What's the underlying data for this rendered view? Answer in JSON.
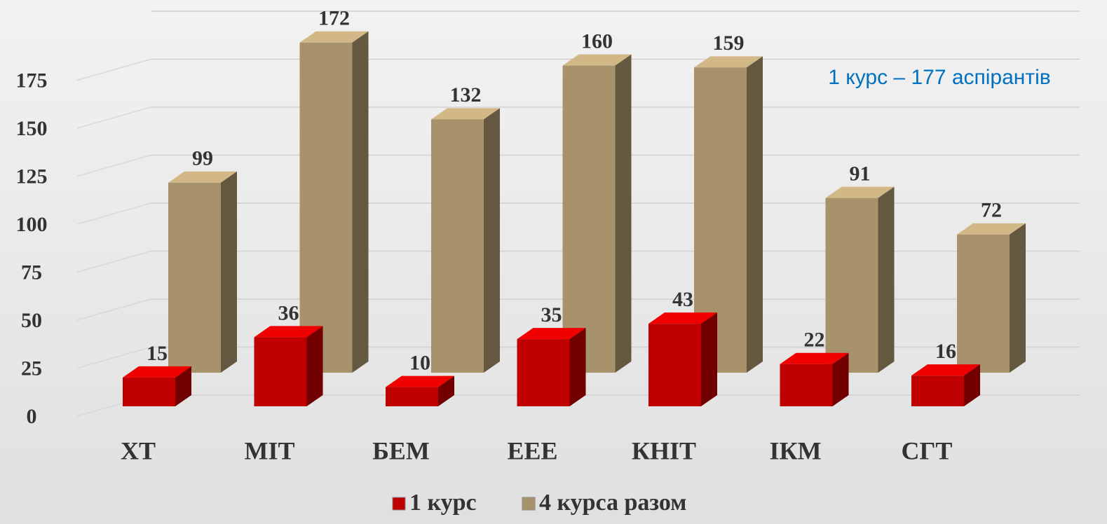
{
  "chart_data": {
    "type": "bar3d",
    "categories": [
      "ХТ",
      "МІТ",
      "БЕМ",
      "ЕЕЕ",
      "КНІТ",
      "ІКМ",
      "СГТ"
    ],
    "series": [
      {
        "name": "1 курс",
        "color": "#c00000",
        "values": [
          15,
          36,
          10,
          35,
          43,
          22,
          16
        ]
      },
      {
        "name": "4 курса разом",
        "color": "#a8926c",
        "values": [
          99,
          172,
          132,
          160,
          159,
          91,
          72
        ]
      }
    ],
    "ylim": [
      0,
      200
    ],
    "yticks": [
      0,
      25,
      50,
      75,
      100,
      125,
      150,
      175
    ],
    "grid": true,
    "annotation": "1 курс – 177 аспірантів",
    "legend": "bottom"
  }
}
